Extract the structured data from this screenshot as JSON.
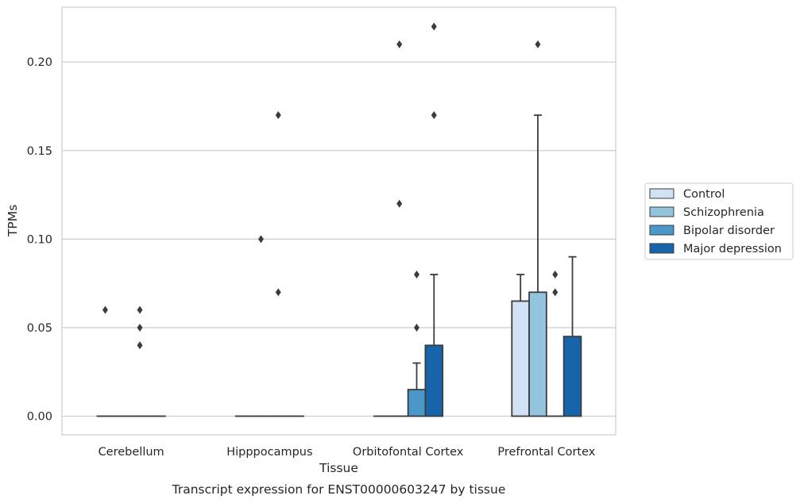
{
  "chart_data": {
    "type": "bar",
    "caption": "Transcript expression for ENST00000603247 by tissue",
    "xlabel": "Tissue",
    "ylabel": "TPMs",
    "ylim": [
      -0.0105,
      0.231
    ],
    "yticks": [
      0.0,
      0.05,
      0.1,
      0.15,
      0.2
    ],
    "ytick_labels": [
      "0.00",
      "0.05",
      "0.10",
      "0.15",
      "0.20"
    ],
    "grid": "horizontal",
    "legend_position": "right",
    "categories": [
      "Cerebellum",
      "Hipppocampus",
      "Orbitofontal Cortex",
      "Prefrontal Cortex"
    ],
    "series": [
      {
        "name": "Control",
        "color": "#cfe1f2",
        "values": [
          0.0,
          0.0,
          0.0,
          0.065
        ],
        "whisker_low": [
          0.0,
          0.0,
          0.0,
          0.0
        ],
        "whisker_high": [
          0.0,
          0.0,
          0.0,
          0.08
        ],
        "outliers": [
          [
            0.06
          ],
          [],
          [],
          []
        ]
      },
      {
        "name": "Schizophrenia",
        "color": "#93c4de",
        "values": [
          0.0,
          0.0,
          0.0,
          0.07
        ],
        "whisker_low": [
          0.0,
          0.0,
          0.0,
          0.0
        ],
        "whisker_high": [
          0.0,
          0.0,
          0.0,
          0.17
        ],
        "outliers": [
          [],
          [
            0.1
          ],
          [
            0.21,
            0.12
          ],
          [
            0.21
          ]
        ]
      },
      {
        "name": "Bipolar disorder",
        "color": "#4a98c9",
        "values": [
          0.0,
          0.0,
          0.015,
          0.0
        ],
        "whisker_low": [
          0.0,
          0.0,
          0.0,
          0.0
        ],
        "whisker_high": [
          0.0,
          0.0,
          0.03,
          0.0
        ],
        "outliers": [
          [
            0.06,
            0.05,
            0.04
          ],
          [
            0.17,
            0.07
          ],
          [
            0.05,
            0.08
          ],
          [
            0.08,
            0.07
          ]
        ]
      },
      {
        "name": "Major depression",
        "color": "#1764ab",
        "values": [
          0.0,
          0.0,
          0.04,
          0.045
        ],
        "whisker_low": [
          0.0,
          0.0,
          0.0,
          0.0
        ],
        "whisker_high": [
          0.0,
          0.0,
          0.08,
          0.09
        ],
        "outliers": [
          [],
          [],
          [
            0.22,
            0.17
          ],
          []
        ]
      }
    ]
  }
}
